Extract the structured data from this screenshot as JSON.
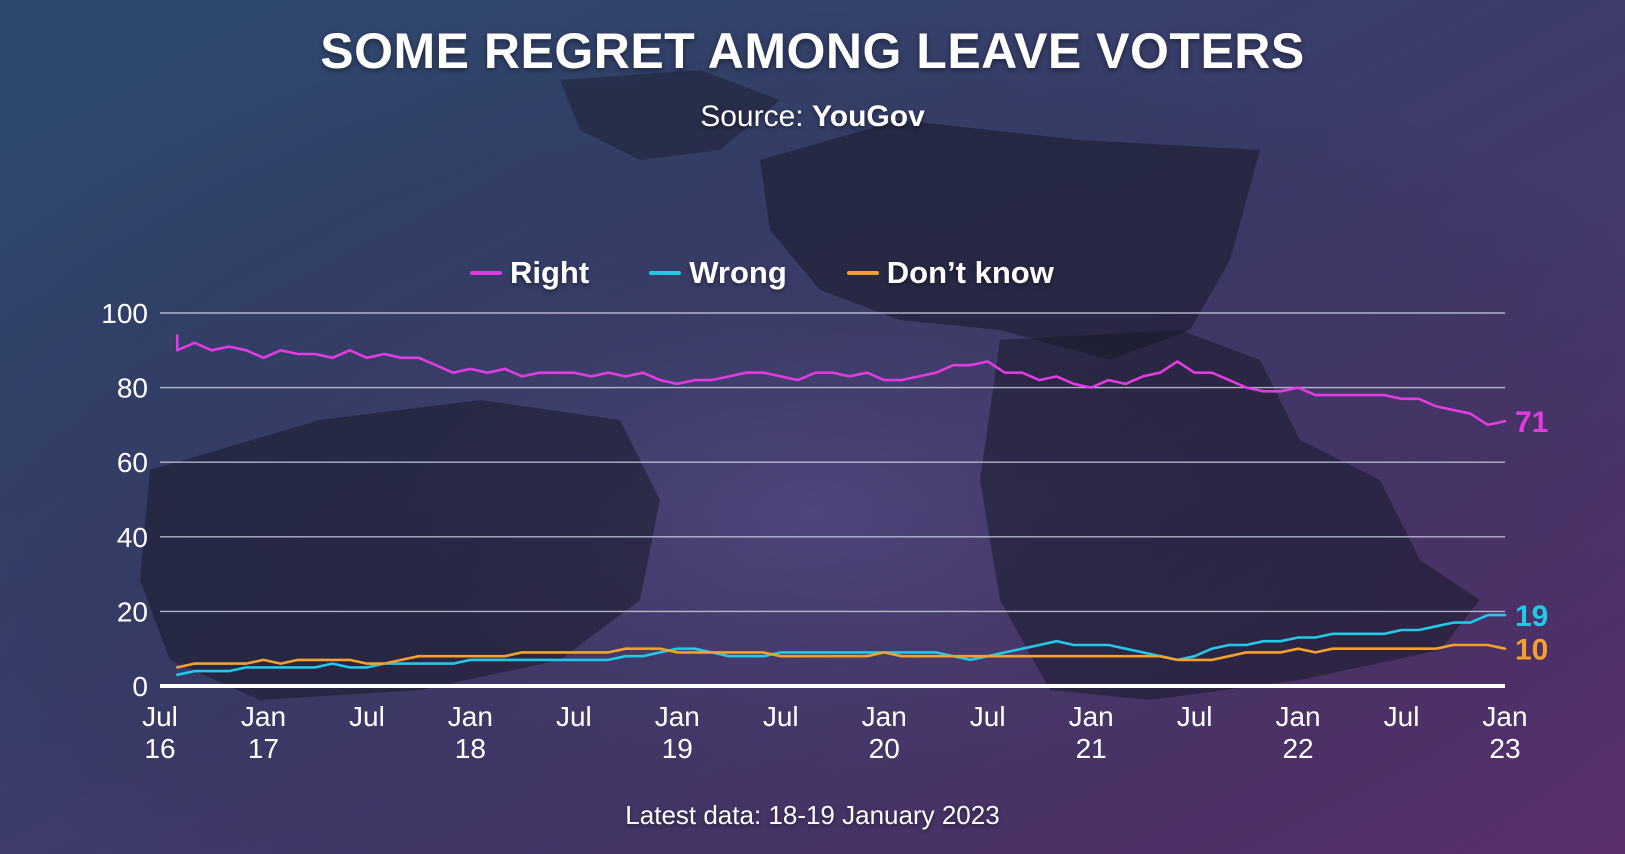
{
  "header": {
    "title": "SOME REGRET AMONG LEAVE VOTERS",
    "source_label": "Source:",
    "source_name": "YouGov"
  },
  "footer": {
    "text": "Latest data:  18-19 January 2023"
  },
  "colors": {
    "right": "#e23be0",
    "wrong": "#22c8e8",
    "dont_know": "#f2a12e",
    "gridline": "#c9cbe0",
    "baseline": "#ffffff"
  },
  "chart_data": {
    "type": "line",
    "title": "SOME REGRET AMONG LEAVE VOTERS",
    "source": "YouGov",
    "x_range": [
      "2016-07",
      "2023-01"
    ],
    "ylim": [
      0,
      100
    ],
    "y_ticks": [
      "0",
      "20",
      "40",
      "60",
      "80",
      "100"
    ],
    "x_ticks": [
      {
        "top": "Jul",
        "bottom": "16",
        "date": "2016-07"
      },
      {
        "top": "Jan",
        "bottom": "17",
        "date": "2017-01"
      },
      {
        "top": "Jul",
        "bottom": "",
        "date": "2017-07"
      },
      {
        "top": "Jan",
        "bottom": "18",
        "date": "2018-01"
      },
      {
        "top": "Jul",
        "bottom": "",
        "date": "2018-07"
      },
      {
        "top": "Jan",
        "bottom": "19",
        "date": "2019-01"
      },
      {
        "top": "Jul",
        "bottom": "",
        "date": "2019-07"
      },
      {
        "top": "Jan",
        "bottom": "20",
        "date": "2020-01"
      },
      {
        "top": "Jul",
        "bottom": "",
        "date": "2020-07"
      },
      {
        "top": "Jan",
        "bottom": "21",
        "date": "2021-01"
      },
      {
        "top": "Jul",
        "bottom": "",
        "date": "2021-07"
      },
      {
        "top": "Jan",
        "bottom": "22",
        "date": "2022-01"
      },
      {
        "top": "Jul",
        "bottom": "",
        "date": "2022-07"
      },
      {
        "top": "Jan",
        "bottom": "23",
        "date": "2023-01"
      }
    ],
    "grid": true,
    "legend_position": "top-center",
    "series": [
      {
        "name": "Right",
        "key": "right",
        "end_label": "71",
        "points": [
          [
            "2016-08",
            94
          ],
          [
            "2016-08",
            90
          ],
          [
            "2016-09",
            92
          ],
          [
            "2016-10",
            90
          ],
          [
            "2016-11",
            91
          ],
          [
            "2016-12",
            90
          ],
          [
            "2017-01",
            88
          ],
          [
            "2017-02",
            90
          ],
          [
            "2017-03",
            89
          ],
          [
            "2017-04",
            89
          ],
          [
            "2017-05",
            88
          ],
          [
            "2017-06",
            90
          ],
          [
            "2017-07",
            88
          ],
          [
            "2017-08",
            89
          ],
          [
            "2017-09",
            88
          ],
          [
            "2017-10",
            88
          ],
          [
            "2017-11",
            86
          ],
          [
            "2017-12",
            84
          ],
          [
            "2018-01",
            85
          ],
          [
            "2018-02",
            84
          ],
          [
            "2018-03",
            85
          ],
          [
            "2018-04",
            83
          ],
          [
            "2018-05",
            84
          ],
          [
            "2018-06",
            84
          ],
          [
            "2018-07",
            84
          ],
          [
            "2018-08",
            83
          ],
          [
            "2018-09",
            84
          ],
          [
            "2018-10",
            83
          ],
          [
            "2018-11",
            84
          ],
          [
            "2018-12",
            82
          ],
          [
            "2019-01",
            81
          ],
          [
            "2019-02",
            82
          ],
          [
            "2019-03",
            82
          ],
          [
            "2019-04",
            83
          ],
          [
            "2019-05",
            84
          ],
          [
            "2019-06",
            84
          ],
          [
            "2019-07",
            83
          ],
          [
            "2019-08",
            82
          ],
          [
            "2019-09",
            84
          ],
          [
            "2019-10",
            84
          ],
          [
            "2019-11",
            83
          ],
          [
            "2019-12",
            84
          ],
          [
            "2020-01",
            82
          ],
          [
            "2020-02",
            82
          ],
          [
            "2020-03",
            83
          ],
          [
            "2020-04",
            84
          ],
          [
            "2020-05",
            86
          ],
          [
            "2020-06",
            86
          ],
          [
            "2020-07",
            87
          ],
          [
            "2020-08",
            84
          ],
          [
            "2020-09",
            84
          ],
          [
            "2020-10",
            82
          ],
          [
            "2020-11",
            83
          ],
          [
            "2020-12",
            81
          ],
          [
            "2021-01",
            80
          ],
          [
            "2021-02",
            82
          ],
          [
            "2021-03",
            81
          ],
          [
            "2021-04",
            83
          ],
          [
            "2021-05",
            84
          ],
          [
            "2021-06",
            87
          ],
          [
            "2021-07",
            84
          ],
          [
            "2021-08",
            84
          ],
          [
            "2021-09",
            82
          ],
          [
            "2021-10",
            80
          ],
          [
            "2021-11",
            79
          ],
          [
            "2021-12",
            79
          ],
          [
            "2022-01",
            80
          ],
          [
            "2022-02",
            78
          ],
          [
            "2022-03",
            78
          ],
          [
            "2022-04",
            78
          ],
          [
            "2022-05",
            78
          ],
          [
            "2022-06",
            78
          ],
          [
            "2022-07",
            77
          ],
          [
            "2022-08",
            77
          ],
          [
            "2022-09",
            75
          ],
          [
            "2022-10",
            74
          ],
          [
            "2022-11",
            73
          ],
          [
            "2022-12",
            70
          ],
          [
            "2023-01",
            71
          ]
        ]
      },
      {
        "name": "Wrong",
        "key": "wrong",
        "end_label": "19",
        "points": [
          [
            "2016-08",
            3
          ],
          [
            "2016-09",
            4
          ],
          [
            "2016-10",
            4
          ],
          [
            "2016-11",
            4
          ],
          [
            "2016-12",
            5
          ],
          [
            "2017-01",
            5
          ],
          [
            "2017-02",
            5
          ],
          [
            "2017-03",
            5
          ],
          [
            "2017-04",
            5
          ],
          [
            "2017-05",
            6
          ],
          [
            "2017-06",
            5
          ],
          [
            "2017-07",
            5
          ],
          [
            "2017-08",
            6
          ],
          [
            "2017-09",
            6
          ],
          [
            "2017-10",
            6
          ],
          [
            "2017-11",
            6
          ],
          [
            "2017-12",
            6
          ],
          [
            "2018-01",
            7
          ],
          [
            "2018-02",
            7
          ],
          [
            "2018-03",
            7
          ],
          [
            "2018-04",
            7
          ],
          [
            "2018-05",
            7
          ],
          [
            "2018-06",
            7
          ],
          [
            "2018-07",
            7
          ],
          [
            "2018-08",
            7
          ],
          [
            "2018-09",
            7
          ],
          [
            "2018-10",
            8
          ],
          [
            "2018-11",
            8
          ],
          [
            "2018-12",
            9
          ],
          [
            "2019-01",
            10
          ],
          [
            "2019-02",
            10
          ],
          [
            "2019-03",
            9
          ],
          [
            "2019-04",
            8
          ],
          [
            "2019-05",
            8
          ],
          [
            "2019-06",
            8
          ],
          [
            "2019-07",
            9
          ],
          [
            "2019-08",
            9
          ],
          [
            "2019-09",
            9
          ],
          [
            "2019-10",
            9
          ],
          [
            "2019-11",
            9
          ],
          [
            "2019-12",
            9
          ],
          [
            "2020-01",
            9
          ],
          [
            "2020-02",
            9
          ],
          [
            "2020-03",
            9
          ],
          [
            "2020-04",
            9
          ],
          [
            "2020-05",
            8
          ],
          [
            "2020-06",
            7
          ],
          [
            "2020-07",
            8
          ],
          [
            "2020-08",
            9
          ],
          [
            "2020-09",
            10
          ],
          [
            "2020-10",
            11
          ],
          [
            "2020-11",
            12
          ],
          [
            "2020-12",
            11
          ],
          [
            "2021-01",
            11
          ],
          [
            "2021-02",
            11
          ],
          [
            "2021-03",
            10
          ],
          [
            "2021-04",
            9
          ],
          [
            "2021-05",
            8
          ],
          [
            "2021-06",
            7
          ],
          [
            "2021-07",
            8
          ],
          [
            "2021-08",
            10
          ],
          [
            "2021-09",
            11
          ],
          [
            "2021-10",
            11
          ],
          [
            "2021-11",
            12
          ],
          [
            "2021-12",
            12
          ],
          [
            "2022-01",
            13
          ],
          [
            "2022-02",
            13
          ],
          [
            "2022-03",
            14
          ],
          [
            "2022-04",
            14
          ],
          [
            "2022-05",
            14
          ],
          [
            "2022-06",
            14
          ],
          [
            "2022-07",
            15
          ],
          [
            "2022-08",
            15
          ],
          [
            "2022-09",
            16
          ],
          [
            "2022-10",
            17
          ],
          [
            "2022-11",
            17
          ],
          [
            "2022-12",
            19
          ],
          [
            "2023-01",
            19
          ]
        ]
      },
      {
        "name": "Don’t know",
        "key": "dont_know",
        "end_label": "10",
        "points": [
          [
            "2016-08",
            5
          ],
          [
            "2016-09",
            6
          ],
          [
            "2016-10",
            6
          ],
          [
            "2016-11",
            6
          ],
          [
            "2016-12",
            6
          ],
          [
            "2017-01",
            7
          ],
          [
            "2017-02",
            6
          ],
          [
            "2017-03",
            7
          ],
          [
            "2017-04",
            7
          ],
          [
            "2017-05",
            7
          ],
          [
            "2017-06",
            7
          ],
          [
            "2017-07",
            6
          ],
          [
            "2017-08",
            6
          ],
          [
            "2017-09",
            7
          ],
          [
            "2017-10",
            8
          ],
          [
            "2017-11",
            8
          ],
          [
            "2017-12",
            8
          ],
          [
            "2018-01",
            8
          ],
          [
            "2018-02",
            8
          ],
          [
            "2018-03",
            8
          ],
          [
            "2018-04",
            9
          ],
          [
            "2018-05",
            9
          ],
          [
            "2018-06",
            9
          ],
          [
            "2018-07",
            9
          ],
          [
            "2018-08",
            9
          ],
          [
            "2018-09",
            9
          ],
          [
            "2018-10",
            10
          ],
          [
            "2018-11",
            10
          ],
          [
            "2018-12",
            10
          ],
          [
            "2019-01",
            9
          ],
          [
            "2019-02",
            9
          ],
          [
            "2019-03",
            9
          ],
          [
            "2019-04",
            9
          ],
          [
            "2019-05",
            9
          ],
          [
            "2019-06",
            9
          ],
          [
            "2019-07",
            8
          ],
          [
            "2019-08",
            8
          ],
          [
            "2019-09",
            8
          ],
          [
            "2019-10",
            8
          ],
          [
            "2019-11",
            8
          ],
          [
            "2019-12",
            8
          ],
          [
            "2020-01",
            9
          ],
          [
            "2020-02",
            8
          ],
          [
            "2020-03",
            8
          ],
          [
            "2020-04",
            8
          ],
          [
            "2020-05",
            8
          ],
          [
            "2020-06",
            8
          ],
          [
            "2020-07",
            8
          ],
          [
            "2020-08",
            8
          ],
          [
            "2020-09",
            8
          ],
          [
            "2020-10",
            8
          ],
          [
            "2020-11",
            8
          ],
          [
            "2020-12",
            8
          ],
          [
            "2021-01",
            8
          ],
          [
            "2021-02",
            8
          ],
          [
            "2021-03",
            8
          ],
          [
            "2021-04",
            8
          ],
          [
            "2021-05",
            8
          ],
          [
            "2021-06",
            7
          ],
          [
            "2021-07",
            7
          ],
          [
            "2021-08",
            7
          ],
          [
            "2021-09",
            8
          ],
          [
            "2021-10",
            9
          ],
          [
            "2021-11",
            9
          ],
          [
            "2021-12",
            9
          ],
          [
            "2022-01",
            10
          ],
          [
            "2022-02",
            9
          ],
          [
            "2022-03",
            10
          ],
          [
            "2022-04",
            10
          ],
          [
            "2022-05",
            10
          ],
          [
            "2022-06",
            10
          ],
          [
            "2022-07",
            10
          ],
          [
            "2022-08",
            10
          ],
          [
            "2022-09",
            10
          ],
          [
            "2022-10",
            11
          ],
          [
            "2022-11",
            11
          ],
          [
            "2022-12",
            11
          ],
          [
            "2023-01",
            10
          ]
        ]
      }
    ]
  }
}
